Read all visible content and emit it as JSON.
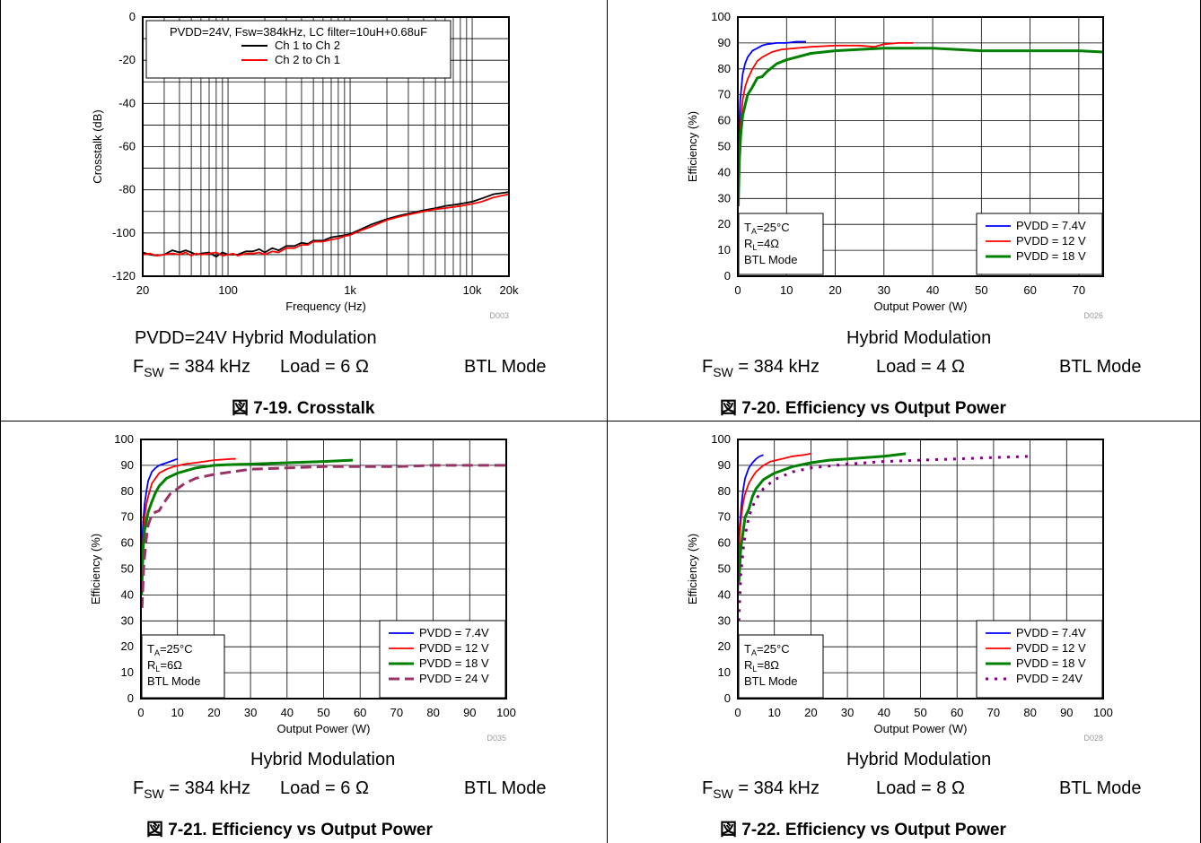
{
  "chart_data": [
    {
      "id": "crosstalk",
      "type": "line",
      "x_scale": "log",
      "xlabel": "Frequency (Hz)",
      "ylabel": "Crosstalk (dB)",
      "xlim": [
        20,
        20000
      ],
      "ylim": [
        -120,
        0
      ],
      "x_tick_values": [
        20,
        100,
        1000,
        10000,
        20000
      ],
      "x_tick_labels": [
        "20",
        "100",
        "1k",
        "10k",
        "20k"
      ],
      "y_ticks": [
        -120,
        -100,
        -80,
        -60,
        -40,
        -20,
        0
      ],
      "grid": true,
      "code": "D003",
      "legend_position": "top",
      "legend_title": "PVDD=24V, Fsw=384kHz, LC filter=10uH+0.68uF",
      "series": [
        {
          "name": "Ch 1 to Ch 2",
          "color": "#000000",
          "width": 1.8,
          "dash": "",
          "x": [
            20,
            23,
            26,
            30,
            35,
            40,
            45,
            50,
            55,
            60,
            70,
            80,
            90,
            100,
            110,
            120,
            140,
            160,
            180,
            200,
            230,
            260,
            300,
            350,
            400,
            450,
            500,
            600,
            700,
            800,
            900,
            1000,
            1200,
            1500,
            2000,
            2500,
            3000,
            4000,
            5000,
            6000,
            7000,
            8000,
            10000,
            12000,
            15000,
            20000
          ],
          "y": [
            -109,
            -110,
            -110.5,
            -110,
            -108,
            -109,
            -108,
            -109,
            -110,
            -109.5,
            -109,
            -111,
            -109,
            -110,
            -110,
            -110,
            -108.5,
            -108.5,
            -107.5,
            -109,
            -107,
            -108,
            -106,
            -106,
            -104.5,
            -105,
            -103.5,
            -103.5,
            -102,
            -101.5,
            -101,
            -100.5,
            -98.5,
            -96,
            -93.5,
            -92,
            -91,
            -89.5,
            -88.5,
            -87.5,
            -87,
            -86.5,
            -85.5,
            -84,
            -82,
            -81
          ]
        },
        {
          "name": "Ch 2 to Ch 1",
          "color": "#ff0000",
          "width": 1.8,
          "dash": "",
          "x": [
            20,
            23,
            26,
            30,
            35,
            40,
            45,
            50,
            55,
            60,
            70,
            80,
            90,
            100,
            110,
            120,
            140,
            160,
            180,
            200,
            230,
            260,
            300,
            350,
            400,
            450,
            500,
            600,
            700,
            800,
            900,
            1000,
            1200,
            1500,
            2000,
            2500,
            3000,
            4000,
            5000,
            6000,
            7000,
            8000,
            10000,
            12000,
            15000,
            20000
          ],
          "y": [
            -110,
            -109.5,
            -110.5,
            -110,
            -109.5,
            -110,
            -109,
            -110.5,
            -109.5,
            -110,
            -109.5,
            -109,
            -110.5,
            -110,
            -109.5,
            -110.5,
            -109.5,
            -109.5,
            -109,
            -110,
            -108.5,
            -109,
            -107,
            -107,
            -105.5,
            -105.5,
            -104,
            -104,
            -103,
            -102.5,
            -101.5,
            -101,
            -99,
            -97,
            -94,
            -92.5,
            -91.5,
            -90,
            -89,
            -88.5,
            -88,
            -87.5,
            -86.5,
            -85.5,
            -83.5,
            -82
          ]
        }
      ]
    },
    {
      "id": "eff4",
      "type": "line",
      "xlabel": "Output Power (W)",
      "ylabel": "Efficiency (%)",
      "xlim": [
        0,
        75
      ],
      "ylim": [
        0,
        100
      ],
      "x_ticks": [
        0,
        10,
        20,
        30,
        40,
        50,
        60,
        70
      ],
      "y_ticks": [
        0,
        10,
        20,
        30,
        40,
        50,
        60,
        70,
        80,
        90,
        100
      ],
      "grid": true,
      "code": "D026",
      "legend_position": "bottom-right",
      "notes": [
        "T_A=25°C",
        "R_L=4Ω",
        "BTL Mode"
      ],
      "series": [
        {
          "name": "PVDD = 7.4V",
          "color": "#0000ff",
          "width": 1.8,
          "dash": "",
          "x": [
            0.05,
            0.2,
            0.5,
            1,
            1.5,
            2,
            3,
            4,
            5,
            6,
            8,
            10,
            12,
            14
          ],
          "y": [
            35,
            55,
            68,
            78,
            82,
            84.5,
            87,
            88,
            89,
            89.5,
            90,
            90,
            90.5,
            90.5
          ]
        },
        {
          "name": "PVDD = 12 V",
          "color": "#ff0000",
          "width": 1.8,
          "dash": "",
          "x": [
            0.05,
            0.3,
            0.6,
            1,
            1.5,
            2,
            3,
            4,
            5,
            7,
            9,
            12,
            15,
            20,
            25,
            28,
            30,
            33,
            36
          ],
          "y": [
            30,
            48,
            60,
            68,
            73,
            76,
            80,
            83,
            84.5,
            86.5,
            87.5,
            88,
            88.5,
            89,
            89,
            88.5,
            89.5,
            90,
            90
          ]
        },
        {
          "name": "PVDD = 18 V",
          "color": "#008000",
          "width": 3,
          "dash": "",
          "x": [
            0.1,
            0.3,
            0.6,
            1,
            1.5,
            2,
            3,
            4,
            5,
            6,
            8,
            10,
            12,
            15,
            20,
            25,
            30,
            40,
            50,
            60,
            70,
            75
          ],
          "y": [
            27,
            44,
            55,
            62,
            66,
            70,
            73,
            76.5,
            77,
            79,
            82,
            83.5,
            84.5,
            86,
            87,
            87.5,
            88,
            88,
            87,
            87,
            87,
            86.5
          ]
        }
      ]
    },
    {
      "id": "eff6",
      "type": "line",
      "xlabel": "Output Power (W)",
      "ylabel": "Efficiency (%)",
      "xlim": [
        0,
        100
      ],
      "ylim": [
        0,
        100
      ],
      "x_ticks": [
        0,
        10,
        20,
        30,
        40,
        50,
        60,
        70,
        80,
        90,
        100
      ],
      "y_ticks": [
        0,
        10,
        20,
        30,
        40,
        50,
        60,
        70,
        80,
        90,
        100
      ],
      "grid": true,
      "code": "D035",
      "legend_position": "bottom-right",
      "notes": [
        "T_A=25°C",
        "R_L=6Ω",
        "BTL Mode"
      ],
      "series": [
        {
          "name": "PVDD = 7.4V",
          "color": "#0000ff",
          "width": 1.8,
          "dash": "",
          "x": [
            0.05,
            0.3,
            0.6,
            1,
            1.5,
            2,
            3,
            4,
            5,
            6,
            8,
            10
          ],
          "y": [
            40,
            58,
            68,
            75,
            80,
            84,
            87.5,
            89,
            90,
            90.5,
            91.5,
            92.5
          ]
        },
        {
          "name": "PVDD = 12 V",
          "color": "#ff0000",
          "width": 1.8,
          "dash": "",
          "x": [
            0.1,
            0.5,
            1,
            1.5,
            2,
            3,
            4,
            5,
            7,
            9,
            12,
            15,
            20,
            25,
            26
          ],
          "y": [
            40,
            60,
            70,
            75,
            78,
            83,
            85,
            87,
            88.5,
            89.5,
            90.5,
            91,
            92,
            92.5,
            92.5
          ]
        },
        {
          "name": "PVDD = 18 V",
          "color": "#008000",
          "width": 3,
          "dash": "",
          "x": [
            0.2,
            0.6,
            1,
            2,
            3,
            4,
            5,
            7,
            10,
            15,
            20,
            25,
            30,
            40,
            50,
            58
          ],
          "y": [
            40,
            58,
            65,
            72,
            76,
            79.5,
            82,
            85,
            87,
            89,
            90,
            90.3,
            90.5,
            91,
            91.5,
            92
          ]
        },
        {
          "name": "PVDD = 24 V",
          "color": "#993366",
          "width": 3,
          "dash": "12,6",
          "x": [
            0.3,
            0.8,
            1.5,
            2,
            3,
            4,
            5,
            6,
            8,
            10,
            12,
            15,
            20,
            25,
            30,
            40,
            50,
            60,
            70,
            80,
            90,
            100
          ],
          "y": [
            35,
            52,
            62,
            67,
            71,
            72,
            72.5,
            75,
            79,
            81,
            83,
            85,
            86.5,
            87.5,
            88.5,
            89,
            89.5,
            89.5,
            89.5,
            90,
            90,
            90
          ]
        }
      ]
    },
    {
      "id": "eff8",
      "type": "line",
      "xlabel": "Output Power (W)",
      "ylabel": "Efficiency (%)",
      "xlim": [
        0,
        100
      ],
      "ylim": [
        0,
        100
      ],
      "x_ticks": [
        0,
        10,
        20,
        30,
        40,
        50,
        60,
        70,
        80,
        90,
        100
      ],
      "y_ticks": [
        0,
        10,
        20,
        30,
        40,
        50,
        60,
        70,
        80,
        90,
        100
      ],
      "grid": true,
      "code": "D028",
      "legend_position": "bottom-right",
      "notes": [
        "T_A=25°C",
        "R_L=8Ω",
        "BTL Mode"
      ],
      "series": [
        {
          "name": "PVDD = 7.4V",
          "color": "#0000ff",
          "width": 1.8,
          "dash": "",
          "x": [
            0.05,
            0.2,
            0.5,
            1,
            1.5,
            2,
            3,
            4,
            5,
            6,
            7
          ],
          "y": [
            40,
            55,
            66,
            75,
            81,
            85,
            89,
            91,
            92.5,
            93.5,
            94
          ]
        },
        {
          "name": "PVDD = 12 V",
          "color": "#ff0000",
          "width": 1.8,
          "dash": "",
          "x": [
            0.1,
            0.5,
            1,
            1.5,
            2,
            3,
            4,
            5,
            7,
            9,
            12,
            15,
            18,
            20
          ],
          "y": [
            45,
            63,
            71,
            76,
            79,
            83,
            85.5,
            87.5,
            90,
            91.5,
            92.5,
            93.5,
            94,
            94.5
          ]
        },
        {
          "name": "PVDD = 18 V",
          "color": "#008000",
          "width": 3,
          "dash": "",
          "x": [
            0.3,
            0.8,
            1.5,
            2,
            3,
            4,
            5,
            7,
            10,
            15,
            20,
            25,
            30,
            35,
            40,
            46
          ],
          "y": [
            45,
            58,
            65,
            70,
            73,
            78,
            81,
            84.5,
            87,
            89.5,
            91,
            92,
            92.5,
            93,
            93.5,
            94.5
          ]
        },
        {
          "name": "PVDD = 24V",
          "color": "#800080",
          "width": 3,
          "dash": "3,7",
          "x": [
            0.3,
            0.8,
            1.5,
            2,
            3,
            4,
            5,
            7,
            10,
            15,
            20,
            30,
            40,
            50,
            60,
            70,
            80
          ],
          "y": [
            30,
            48,
            58,
            63,
            70,
            74,
            77,
            81,
            84.5,
            87.5,
            89,
            90.5,
            91.5,
            92,
            92.5,
            93,
            93.5
          ]
        }
      ]
    }
  ],
  "captions": [
    {
      "line1": "PVDD=24V   Hybrid Modulation",
      "fsw_main": "F",
      "fsw_sub": "SW",
      "fsw_value": " = 384 kHz",
      "load": "Load = 6 Ω",
      "mode": "BTL Mode",
      "figure": "図 7-19. Crosstalk"
    },
    {
      "line1": "Hybrid Modulation",
      "fsw_main": "F",
      "fsw_sub": "SW",
      "fsw_value": " = 384 kHz",
      "load": "Load = 4 Ω",
      "mode": "BTL Mode",
      "figure": "図 7-20. Efficiency vs Output Power"
    },
    {
      "line1": "Hybrid Modulation",
      "fsw_main": "F",
      "fsw_sub": "SW",
      "fsw_value": " = 384 kHz",
      "load": "Load = 6 Ω",
      "mode": "BTL Mode",
      "figure": "図 7-21. Efficiency vs Output Power"
    },
    {
      "line1": "Hybrid Modulation",
      "fsw_main": "F",
      "fsw_sub": "SW",
      "fsw_value": " = 384 kHz",
      "load": "Load = 8 Ω",
      "mode": "BTL Mode",
      "figure": "図 7-22. Efficiency vs Output Power"
    }
  ]
}
